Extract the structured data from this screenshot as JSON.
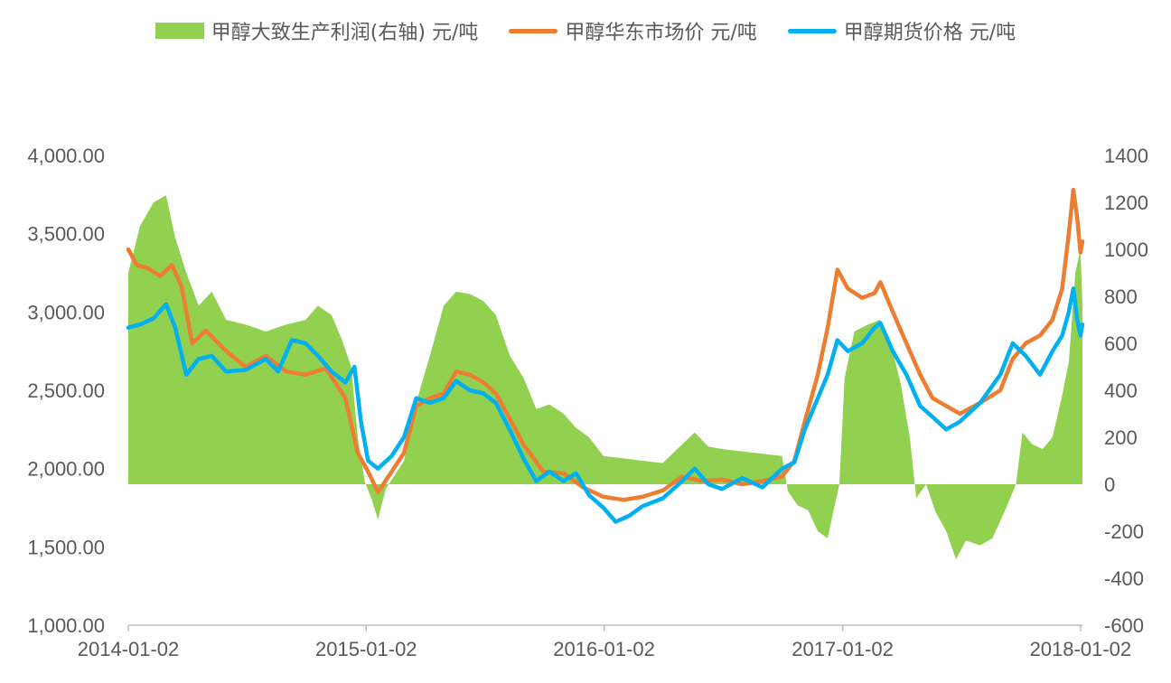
{
  "chart_data": {
    "type": "line",
    "legend_placement": "top",
    "grid": false,
    "x_ticks": [
      "2014-01-02",
      "2015-01-02",
      "2016-01-02",
      "2017-01-02",
      "2018-01-02"
    ],
    "xlim": [
      "2014-01-02",
      "2018-01-05"
    ],
    "y_left": {
      "range": [
        1000,
        4000
      ],
      "ticks": [
        "1,000.00",
        "1,500.00",
        "2,000.00",
        "2,500.00",
        "3,000.00",
        "3,500.00",
        "4,000.00"
      ]
    },
    "y_right": {
      "range": [
        -600,
        1400
      ],
      "ticks": [
        "-600",
        "-400",
        "-200",
        "0",
        "200",
        "400",
        "600",
        "800",
        "1000",
        "1200",
        "1400"
      ]
    },
    "series": [
      {
        "name": "甲醇大致生产利润(右轴) 元/吨",
        "type": "area",
        "axis": "right",
        "color": "#92D050",
        "points": [
          [
            "2014-01-02",
            900
          ],
          [
            "2014-01-20",
            1100
          ],
          [
            "2014-02-10",
            1200
          ],
          [
            "2014-03-01",
            1230
          ],
          [
            "2014-03-15",
            1050
          ],
          [
            "2014-04-01",
            900
          ],
          [
            "2014-04-20",
            760
          ],
          [
            "2014-05-10",
            820
          ],
          [
            "2014-06-01",
            700
          ],
          [
            "2014-07-01",
            680
          ],
          [
            "2014-08-01",
            650
          ],
          [
            "2014-09-01",
            680
          ],
          [
            "2014-10-01",
            700
          ],
          [
            "2014-10-20",
            760
          ],
          [
            "2014-11-10",
            720
          ],
          [
            "2014-11-25",
            620
          ],
          [
            "2014-12-10",
            500
          ],
          [
            "2014-12-20",
            200
          ],
          [
            "2014-12-31",
            10
          ],
          [
            "2015-01-10",
            -60
          ],
          [
            "2015-01-20",
            -150
          ],
          [
            "2015-02-01",
            -20
          ],
          [
            "2015-02-15",
            40
          ],
          [
            "2015-03-01",
            100
          ],
          [
            "2015-03-20",
            350
          ],
          [
            "2015-04-10",
            550
          ],
          [
            "2015-05-01",
            760
          ],
          [
            "2015-05-20",
            820
          ],
          [
            "2015-06-10",
            810
          ],
          [
            "2015-07-01",
            780
          ],
          [
            "2015-07-20",
            720
          ],
          [
            "2015-08-10",
            550
          ],
          [
            "2015-09-01",
            450
          ],
          [
            "2015-09-20",
            320
          ],
          [
            "2015-10-10",
            340
          ],
          [
            "2015-11-01",
            300
          ],
          [
            "2015-11-20",
            240
          ],
          [
            "2015-12-10",
            200
          ],
          [
            "2016-01-01",
            120
          ],
          [
            "2016-02-01",
            110
          ],
          [
            "2016-03-01",
            100
          ],
          [
            "2016-04-01",
            90
          ],
          [
            "2016-05-01",
            170
          ],
          [
            "2016-05-20",
            220
          ],
          [
            "2016-06-10",
            160
          ],
          [
            "2016-07-01",
            150
          ],
          [
            "2016-08-01",
            140
          ],
          [
            "2016-09-01",
            130
          ],
          [
            "2016-10-01",
            120
          ],
          [
            "2016-10-10",
            -30
          ],
          [
            "2016-10-25",
            -90
          ],
          [
            "2016-11-10",
            -110
          ],
          [
            "2016-11-25",
            -200
          ],
          [
            "2016-12-10",
            -230
          ],
          [
            "2016-12-20",
            -100
          ],
          [
            "2016-12-28",
            0
          ],
          [
            "2017-01-05",
            450
          ],
          [
            "2017-01-20",
            650
          ],
          [
            "2017-02-10",
            680
          ],
          [
            "2017-02-28",
            700
          ],
          [
            "2017-03-15",
            620
          ],
          [
            "2017-04-01",
            430
          ],
          [
            "2017-04-15",
            200
          ],
          [
            "2017-04-25",
            -60
          ],
          [
            "2017-05-10",
            0
          ],
          [
            "2017-05-25",
            -120
          ],
          [
            "2017-06-10",
            -200
          ],
          [
            "2017-06-25",
            -320
          ],
          [
            "2017-07-10",
            -240
          ],
          [
            "2017-08-01",
            -260
          ],
          [
            "2017-08-20",
            -230
          ],
          [
            "2017-09-10",
            -100
          ],
          [
            "2017-09-25",
            0
          ],
          [
            "2017-10-05",
            220
          ],
          [
            "2017-10-20",
            170
          ],
          [
            "2017-11-05",
            150
          ],
          [
            "2017-11-20",
            200
          ],
          [
            "2017-12-05",
            380
          ],
          [
            "2017-12-15",
            520
          ],
          [
            "2017-12-25",
            900
          ],
          [
            "2018-01-02",
            1000
          ],
          [
            "2018-01-05",
            760
          ]
        ]
      },
      {
        "name": "甲醇华东市场价 元/吨",
        "type": "line",
        "axis": "left",
        "color": "#ED7D31",
        "points": [
          [
            "2014-01-02",
            3400
          ],
          [
            "2014-01-15",
            3300
          ],
          [
            "2014-02-01",
            3280
          ],
          [
            "2014-02-20",
            3230
          ],
          [
            "2014-03-10",
            3300
          ],
          [
            "2014-03-25",
            3160
          ],
          [
            "2014-04-10",
            2800
          ],
          [
            "2014-05-01",
            2880
          ],
          [
            "2014-06-01",
            2750
          ],
          [
            "2014-07-01",
            2650
          ],
          [
            "2014-08-01",
            2720
          ],
          [
            "2014-09-01",
            2620
          ],
          [
            "2014-10-01",
            2600
          ],
          [
            "2014-11-01",
            2640
          ],
          [
            "2014-12-01",
            2450
          ],
          [
            "2014-12-20",
            2100
          ],
          [
            "2015-01-05",
            1980
          ],
          [
            "2015-01-20",
            1850
          ],
          [
            "2015-02-10",
            1980
          ],
          [
            "2015-03-01",
            2100
          ],
          [
            "2015-03-20",
            2400
          ],
          [
            "2015-04-10",
            2450
          ],
          [
            "2015-05-01",
            2480
          ],
          [
            "2015-05-20",
            2620
          ],
          [
            "2015-06-10",
            2600
          ],
          [
            "2015-07-01",
            2550
          ],
          [
            "2015-07-20",
            2480
          ],
          [
            "2015-08-10",
            2320
          ],
          [
            "2015-09-01",
            2150
          ],
          [
            "2015-10-01",
            1980
          ],
          [
            "2015-11-01",
            1970
          ],
          [
            "2015-12-01",
            1880
          ],
          [
            "2016-01-01",
            1820
          ],
          [
            "2016-02-01",
            1800
          ],
          [
            "2016-03-01",
            1820
          ],
          [
            "2016-04-01",
            1860
          ],
          [
            "2016-05-01",
            1950
          ],
          [
            "2016-06-01",
            1920
          ],
          [
            "2016-07-01",
            1930
          ],
          [
            "2016-08-01",
            1900
          ],
          [
            "2016-09-01",
            1920
          ],
          [
            "2016-10-01",
            1950
          ],
          [
            "2016-10-20",
            2050
          ],
          [
            "2016-11-05",
            2300
          ],
          [
            "2016-11-25",
            2600
          ],
          [
            "2016-12-10",
            2900
          ],
          [
            "2016-12-25",
            3270
          ],
          [
            "2017-01-10",
            3150
          ],
          [
            "2017-02-01",
            3090
          ],
          [
            "2017-02-20",
            3120
          ],
          [
            "2017-03-01",
            3190
          ],
          [
            "2017-03-20",
            3000
          ],
          [
            "2017-04-10",
            2800
          ],
          [
            "2017-05-01",
            2600
          ],
          [
            "2017-05-20",
            2450
          ],
          [
            "2017-06-10",
            2400
          ],
          [
            "2017-07-01",
            2350
          ],
          [
            "2017-08-01",
            2420
          ],
          [
            "2017-09-01",
            2500
          ],
          [
            "2017-09-20",
            2700
          ],
          [
            "2017-10-10",
            2800
          ],
          [
            "2017-11-01",
            2850
          ],
          [
            "2017-11-20",
            2950
          ],
          [
            "2017-12-05",
            3150
          ],
          [
            "2017-12-15",
            3500
          ],
          [
            "2017-12-22",
            3780
          ],
          [
            "2017-12-28",
            3600
          ],
          [
            "2018-01-02",
            3380
          ],
          [
            "2018-01-05",
            3450
          ]
        ]
      },
      {
        "name": "甲醇期货价格 元/吨",
        "type": "line",
        "axis": "left",
        "color": "#00B0F0",
        "points": [
          [
            "2014-01-02",
            2900
          ],
          [
            "2014-01-20",
            2920
          ],
          [
            "2014-02-10",
            2960
          ],
          [
            "2014-03-01",
            3050
          ],
          [
            "2014-03-15",
            2900
          ],
          [
            "2014-04-01",
            2600
          ],
          [
            "2014-04-20",
            2700
          ],
          [
            "2014-05-10",
            2720
          ],
          [
            "2014-06-01",
            2620
          ],
          [
            "2014-07-01",
            2630
          ],
          [
            "2014-08-01",
            2700
          ],
          [
            "2014-08-20",
            2620
          ],
          [
            "2014-09-10",
            2820
          ],
          [
            "2014-10-01",
            2800
          ],
          [
            "2014-10-20",
            2720
          ],
          [
            "2014-11-10",
            2620
          ],
          [
            "2014-12-01",
            2550
          ],
          [
            "2014-12-15",
            2650
          ],
          [
            "2014-12-25",
            2300
          ],
          [
            "2015-01-05",
            2050
          ],
          [
            "2015-01-20",
            2000
          ],
          [
            "2015-02-10",
            2080
          ],
          [
            "2015-03-01",
            2200
          ],
          [
            "2015-03-20",
            2450
          ],
          [
            "2015-04-10",
            2420
          ],
          [
            "2015-05-01",
            2450
          ],
          [
            "2015-05-20",
            2560
          ],
          [
            "2015-06-10",
            2500
          ],
          [
            "2015-07-01",
            2480
          ],
          [
            "2015-07-20",
            2420
          ],
          [
            "2015-08-10",
            2250
          ],
          [
            "2015-09-01",
            2060
          ],
          [
            "2015-09-20",
            1920
          ],
          [
            "2015-10-10",
            1980
          ],
          [
            "2015-11-01",
            1920
          ],
          [
            "2015-11-20",
            1970
          ],
          [
            "2015-12-10",
            1830
          ],
          [
            "2016-01-01",
            1750
          ],
          [
            "2016-01-20",
            1660
          ],
          [
            "2016-02-10",
            1700
          ],
          [
            "2016-03-01",
            1760
          ],
          [
            "2016-04-01",
            1810
          ],
          [
            "2016-05-01",
            1920
          ],
          [
            "2016-05-20",
            2000
          ],
          [
            "2016-06-10",
            1900
          ],
          [
            "2016-07-01",
            1870
          ],
          [
            "2016-08-01",
            1940
          ],
          [
            "2016-09-01",
            1880
          ],
          [
            "2016-10-01",
            2000
          ],
          [
            "2016-10-20",
            2040
          ],
          [
            "2016-11-05",
            2250
          ],
          [
            "2016-11-25",
            2450
          ],
          [
            "2016-12-10",
            2600
          ],
          [
            "2016-12-25",
            2820
          ],
          [
            "2017-01-10",
            2750
          ],
          [
            "2017-02-01",
            2800
          ],
          [
            "2017-02-20",
            2900
          ],
          [
            "2017-03-01",
            2930
          ],
          [
            "2017-03-20",
            2750
          ],
          [
            "2017-04-10",
            2600
          ],
          [
            "2017-05-01",
            2400
          ],
          [
            "2017-05-20",
            2330
          ],
          [
            "2017-06-10",
            2250
          ],
          [
            "2017-07-01",
            2300
          ],
          [
            "2017-08-01",
            2420
          ],
          [
            "2017-09-01",
            2600
          ],
          [
            "2017-09-20",
            2800
          ],
          [
            "2017-10-10",
            2720
          ],
          [
            "2017-11-01",
            2600
          ],
          [
            "2017-11-20",
            2750
          ],
          [
            "2017-12-05",
            2850
          ],
          [
            "2017-12-15",
            3000
          ],
          [
            "2017-12-22",
            3150
          ],
          [
            "2017-12-28",
            2950
          ],
          [
            "2018-01-02",
            2850
          ],
          [
            "2018-01-05",
            2920
          ]
        ]
      }
    ]
  }
}
